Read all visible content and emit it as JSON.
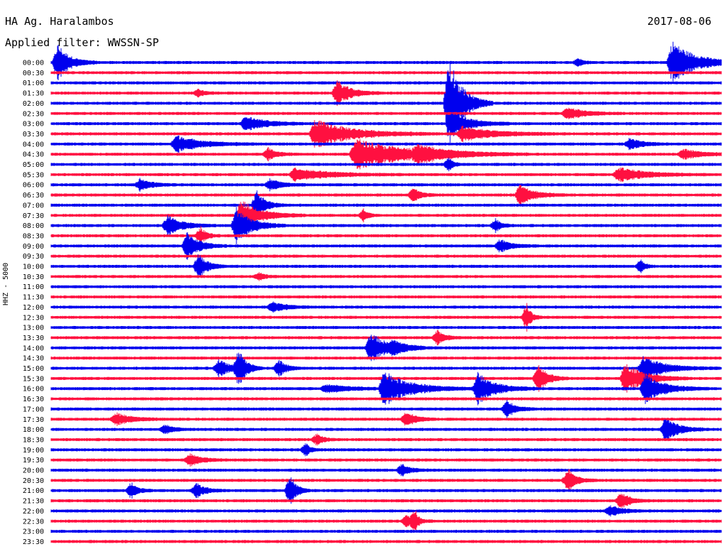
{
  "header": {
    "station": "HA Ag. Haralambos",
    "date": "2017-08-06",
    "filter": "Applied filter: WWSSN-SP",
    "channel": "HHZ - 5000"
  },
  "colors": {
    "blue": "#0000ee",
    "red": "#ff1040"
  },
  "chart_data": {
    "type": "line",
    "title": "HA Ag. Haralambos",
    "ylabel": "HHZ - 5000",
    "rows": [
      "00:00",
      "00:30",
      "01:00",
      "01:30",
      "02:00",
      "02:30",
      "03:00",
      "03:30",
      "04:00",
      "04:30",
      "05:00",
      "05:30",
      "06:00",
      "06:30",
      "07:00",
      "07:30",
      "08:00",
      "08:30",
      "09:00",
      "09:30",
      "10:00",
      "10:30",
      "11:00",
      "11:30",
      "12:00",
      "12:30",
      "13:00",
      "13:30",
      "14:00",
      "14:30",
      "15:00",
      "15:30",
      "16:00",
      "16:30",
      "17:00",
      "17:30",
      "18:00",
      "18:30",
      "19:00",
      "19:30",
      "20:00",
      "20:30",
      "21:00",
      "21:30",
      "22:00",
      "22:30",
      "23:00",
      "23:30"
    ],
    "row_colors": [
      "blue",
      "red"
    ],
    "x_range_minutes": [
      0,
      30
    ],
    "events": [
      {
        "row": 0,
        "minute": 0.3,
        "amp": 26,
        "dur": 0.8
      },
      {
        "row": 0,
        "minute": 27.8,
        "amp": 30,
        "dur": 1.6
      },
      {
        "row": 0,
        "minute": 23.6,
        "amp": 6,
        "dur": 0.3
      },
      {
        "row": 3,
        "minute": 12.8,
        "amp": 18,
        "dur": 0.9
      },
      {
        "row": 3,
        "minute": 6.6,
        "amp": 5,
        "dur": 0.4
      },
      {
        "row": 4,
        "minute": 17.8,
        "amp": 70,
        "dur": 0.9
      },
      {
        "row": 5,
        "minute": 23.1,
        "amp": 8,
        "dur": 1.2
      },
      {
        "row": 6,
        "minute": 8.7,
        "amp": 10,
        "dur": 1.4
      },
      {
        "row": 6,
        "minute": 17.9,
        "amp": 20,
        "dur": 1.2
      },
      {
        "row": 7,
        "minute": 11.8,
        "amp": 20,
        "dur": 2.5
      },
      {
        "row": 7,
        "minute": 18.4,
        "amp": 10,
        "dur": 2.2
      },
      {
        "row": 8,
        "minute": 5.6,
        "amp": 12,
        "dur": 1.6
      },
      {
        "row": 8,
        "minute": 25.9,
        "amp": 8,
        "dur": 0.8
      },
      {
        "row": 9,
        "minute": 13.6,
        "amp": 22,
        "dur": 3.5
      },
      {
        "row": 9,
        "minute": 9.7,
        "amp": 9,
        "dur": 0.6
      },
      {
        "row": 9,
        "minute": 16.4,
        "amp": 9,
        "dur": 1.8
      },
      {
        "row": 9,
        "minute": 28.3,
        "amp": 7,
        "dur": 1.2
      },
      {
        "row": 10,
        "minute": 17.8,
        "amp": 10,
        "dur": 0.3
      },
      {
        "row": 11,
        "minute": 10.9,
        "amp": 9,
        "dur": 2.2
      },
      {
        "row": 11,
        "minute": 25.4,
        "amp": 10,
        "dur": 1.8
      },
      {
        "row": 12,
        "minute": 4.0,
        "amp": 9,
        "dur": 0.7
      },
      {
        "row": 12,
        "minute": 9.8,
        "amp": 8,
        "dur": 0.8
      },
      {
        "row": 13,
        "minute": 21.0,
        "amp": 16,
        "dur": 0.9
      },
      {
        "row": 13,
        "minute": 16.2,
        "amp": 10,
        "dur": 0.5
      },
      {
        "row": 14,
        "minute": 9.2,
        "amp": 20,
        "dur": 0.6
      },
      {
        "row": 15,
        "minute": 8.5,
        "amp": 22,
        "dur": 1.3
      },
      {
        "row": 15,
        "minute": 14.0,
        "amp": 9,
        "dur": 0.3
      },
      {
        "row": 16,
        "minute": 5.2,
        "amp": 14,
        "dur": 1.0
      },
      {
        "row": 16,
        "minute": 8.3,
        "amp": 26,
        "dur": 1.0
      },
      {
        "row": 16,
        "minute": 19.9,
        "amp": 9,
        "dur": 0.4
      },
      {
        "row": 17,
        "minute": 6.7,
        "amp": 12,
        "dur": 0.4
      },
      {
        "row": 18,
        "minute": 6.1,
        "amp": 20,
        "dur": 0.8
      },
      {
        "row": 18,
        "minute": 20.1,
        "amp": 9,
        "dur": 0.8
      },
      {
        "row": 20,
        "minute": 6.6,
        "amp": 18,
        "dur": 0.6
      },
      {
        "row": 20,
        "minute": 26.4,
        "amp": 9,
        "dur": 0.3
      },
      {
        "row": 21,
        "minute": 9.3,
        "amp": 5,
        "dur": 0.4
      },
      {
        "row": 24,
        "minute": 9.9,
        "amp": 8,
        "dur": 0.8
      },
      {
        "row": 25,
        "minute": 21.3,
        "amp": 20,
        "dur": 0.3
      },
      {
        "row": 27,
        "minute": 17.3,
        "amp": 10,
        "dur": 0.5
      },
      {
        "row": 28,
        "minute": 14.3,
        "amp": 22,
        "dur": 1.1
      },
      {
        "row": 28,
        "minute": 15.3,
        "amp": 7,
        "dur": 1.0
      },
      {
        "row": 30,
        "minute": 7.5,
        "amp": 12,
        "dur": 0.8
      },
      {
        "row": 30,
        "minute": 8.4,
        "amp": 26,
        "dur": 0.5
      },
      {
        "row": 30,
        "minute": 10.2,
        "amp": 12,
        "dur": 0.5
      },
      {
        "row": 30,
        "minute": 26.5,
        "amp": 16,
        "dur": 1.5
      },
      {
        "row": 31,
        "minute": 21.8,
        "amp": 22,
        "dur": 0.6
      },
      {
        "row": 31,
        "minute": 25.7,
        "amp": 22,
        "dur": 1.3
      },
      {
        "row": 32,
        "minute": 14.9,
        "amp": 24,
        "dur": 1.8
      },
      {
        "row": 32,
        "minute": 19.1,
        "amp": 22,
        "dur": 1.2
      },
      {
        "row": 32,
        "minute": 26.6,
        "amp": 20,
        "dur": 1.3
      },
      {
        "row": 32,
        "minute": 12.3,
        "amp": 6,
        "dur": 1.4
      },
      {
        "row": 34,
        "minute": 20.4,
        "amp": 12,
        "dur": 0.6
      },
      {
        "row": 35,
        "minute": 15.9,
        "amp": 12,
        "dur": 0.6
      },
      {
        "row": 35,
        "minute": 2.9,
        "amp": 9,
        "dur": 1.0
      },
      {
        "row": 36,
        "minute": 27.5,
        "amp": 16,
        "dur": 0.9
      },
      {
        "row": 36,
        "minute": 5.1,
        "amp": 6,
        "dur": 0.6
      },
      {
        "row": 37,
        "minute": 11.9,
        "amp": 8,
        "dur": 0.4
      },
      {
        "row": 38,
        "minute": 11.4,
        "amp": 10,
        "dur": 0.3
      },
      {
        "row": 39,
        "minute": 6.2,
        "amp": 9,
        "dur": 0.8
      },
      {
        "row": 40,
        "minute": 15.7,
        "amp": 8,
        "dur": 0.6
      },
      {
        "row": 41,
        "minute": 23.1,
        "amp": 10,
        "dur": 0.7
      },
      {
        "row": 41,
        "minute": 23.2,
        "amp": 7,
        "dur": 0.3
      },
      {
        "row": 42,
        "minute": 3.6,
        "amp": 12,
        "dur": 0.4
      },
      {
        "row": 42,
        "minute": 6.5,
        "amp": 10,
        "dur": 0.6
      },
      {
        "row": 42,
        "minute": 10.7,
        "amp": 26,
        "dur": 0.4
      },
      {
        "row": 43,
        "minute": 25.5,
        "amp": 12,
        "dur": 0.6
      },
      {
        "row": 44,
        "minute": 25.0,
        "amp": 8,
        "dur": 0.8
      },
      {
        "row": 45,
        "minute": 15.9,
        "amp": 8,
        "dur": 0.6
      },
      {
        "row": 45,
        "minute": 16.3,
        "amp": 16,
        "dur": 0.2
      }
    ]
  }
}
